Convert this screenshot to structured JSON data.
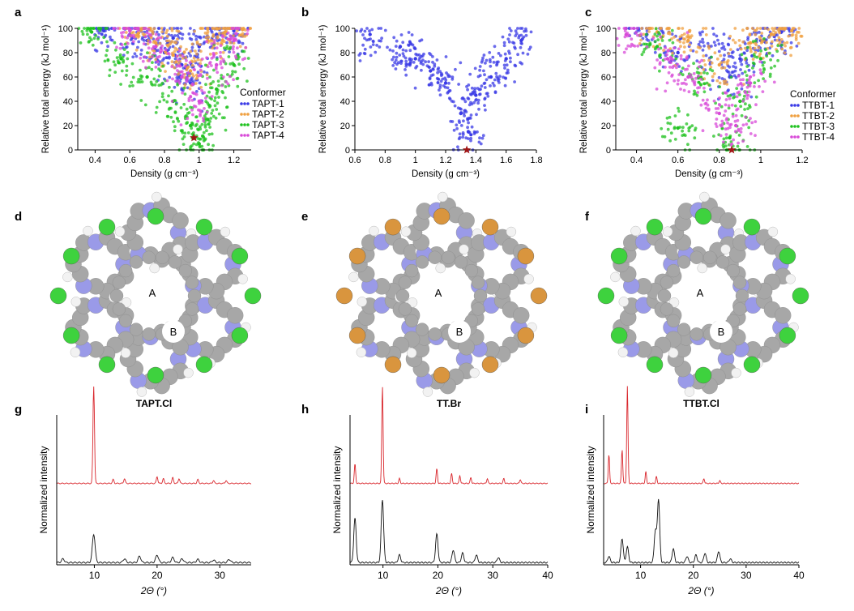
{
  "panels": {
    "a": {
      "letter": "a",
      "xlabel": "Density (g cm⁻³)",
      "ylabel": "Relative total energy (kJ mol⁻¹)",
      "legend_title": "Conformer",
      "legend": [
        "TAPT-1",
        "TAPT-2",
        "TAPT-3",
        "TAPT-4"
      ]
    },
    "b": {
      "letter": "b",
      "xlabel": "Density (g cm⁻³)",
      "ylabel": "Relative total energy (kJ mol⁻¹)"
    },
    "c": {
      "letter": "c",
      "xlabel": "Density (g cm⁻³)",
      "ylabel": "Relative total energy (kJ mol⁻¹)",
      "legend_title": "Conformer",
      "legend": [
        "TTBT-1",
        "TTBT-2",
        "TTBT-3",
        "TTBT-4"
      ]
    },
    "d": {
      "letter": "d",
      "pore_a": "A",
      "pore_b": "B"
    },
    "e": {
      "letter": "e",
      "pore_a": "A",
      "pore_b": "B"
    },
    "f": {
      "letter": "f",
      "pore_a": "A",
      "pore_b": "B"
    },
    "g": {
      "letter": "g",
      "title": "TAPT.Cl",
      "xlabel": "2Θ (°)",
      "ylabel": "Normalized intensity"
    },
    "h": {
      "letter": "h",
      "title": "TT.Br",
      "xlabel": "2Θ (°)",
      "ylabel": "Normalized intensity"
    },
    "i": {
      "letter": "i",
      "title": "TTBT.Cl",
      "xlabel": "2Θ (°)",
      "ylabel": "Normalized intensity"
    }
  },
  "colors": {
    "series1": "#3a3ae6",
    "series2": "#f0a040",
    "series3": "#1fc21f",
    "series4": "#d84ad8",
    "simulated": "#d9262c",
    "experimental": "#111111",
    "star": "#a01515",
    "carbon": "#a7a7a7",
    "nitrogen": "#9a9ae8",
    "hydrogen": "#f2f2f2",
    "chlorine": "#3ed23e",
    "bromine": "#d9953e"
  },
  "chart_data": [
    {
      "panel": "a",
      "type": "scatter",
      "xlim": [
        0.3,
        1.3
      ],
      "ylim": [
        0,
        100
      ],
      "xticks": [
        0.4,
        0.6,
        0.8,
        1.0,
        1.2
      ],
      "yticks": [
        0,
        20,
        40,
        60,
        80,
        100
      ],
      "series": [
        {
          "name": "TAPT-1",
          "points": [
            [
              0.45,
              98
            ],
            [
              0.6,
              95
            ],
            [
              0.7,
              90
            ],
            [
              0.8,
              80
            ],
            [
              0.9,
              70
            ],
            [
              0.95,
              55
            ],
            [
              1.0,
              85
            ],
            [
              1.1,
              95
            ],
            [
              1.2,
              98
            ],
            [
              0.85,
              92
            ]
          ]
        },
        {
          "name": "TAPT-2",
          "points": [
            [
              0.65,
              96
            ],
            [
              0.75,
              88
            ],
            [
              0.85,
              78
            ],
            [
              0.95,
              65
            ],
            [
              1.05,
              90
            ],
            [
              1.15,
              97
            ],
            [
              1.25,
              99
            ]
          ]
        },
        {
          "name": "TAPT-3",
          "points": [
            [
              0.38,
              97
            ],
            [
              0.55,
              75
            ],
            [
              0.7,
              60
            ],
            [
              0.85,
              40
            ],
            [
              0.95,
              20
            ],
            [
              1.0,
              5
            ],
            [
              1.05,
              25
            ],
            [
              1.1,
              50
            ],
            [
              1.2,
              70
            ]
          ]
        },
        {
          "name": "TAPT-4",
          "points": [
            [
              0.6,
              98
            ],
            [
              0.75,
              85
            ],
            [
              0.9,
              60
            ],
            [
              1.0,
              40
            ],
            [
              1.1,
              70
            ],
            [
              1.2,
              90
            ]
          ]
        }
      ],
      "marker": {
        "label": "star",
        "x": 0.97,
        "y": 10
      }
    },
    {
      "panel": "b",
      "type": "scatter",
      "xlim": [
        0.6,
        1.8
      ],
      "ylim": [
        0,
        100
      ],
      "xticks": [
        0.6,
        0.8,
        1.0,
        1.2,
        1.4,
        1.6,
        1.8
      ],
      "yticks": [
        0,
        20,
        40,
        60,
        80,
        100
      ],
      "series": [
        {
          "points": [
            [
              0.7,
              95
            ],
            [
              0.9,
              85
            ],
            [
              1.0,
              75
            ],
            [
              1.1,
              65
            ],
            [
              1.2,
              55
            ],
            [
              1.3,
              30
            ],
            [
              1.35,
              15
            ],
            [
              1.4,
              45
            ],
            [
              1.5,
              60
            ],
            [
              1.6,
              75
            ],
            [
              1.7,
              90
            ]
          ]
        }
      ],
      "marker": {
        "label": "star",
        "x": 1.34,
        "y": 0
      }
    },
    {
      "panel": "c",
      "type": "scatter",
      "xlim": [
        0.3,
        1.2
      ],
      "ylim": [
        0,
        100
      ],
      "xticks": [
        0.4,
        0.6,
        0.8,
        1.0,
        1.2
      ],
      "yticks": [
        0,
        20,
        40,
        60,
        80,
        100
      ],
      "series": [
        {
          "name": "TTBT-1",
          "points": [
            [
              0.45,
              95
            ],
            [
              0.6,
              80
            ],
            [
              0.75,
              85
            ],
            [
              0.85,
              60
            ],
            [
              0.9,
              75
            ],
            [
              1.0,
              90
            ],
            [
              1.1,
              97
            ]
          ]
        },
        {
          "name": "TTBT-2",
          "points": [
            [
              0.5,
              97
            ],
            [
              0.65,
              90
            ],
            [
              0.8,
              70
            ],
            [
              0.95,
              88
            ],
            [
              1.05,
              95
            ],
            [
              1.15,
              98
            ]
          ]
        },
        {
          "name": "TTBT-3",
          "points": [
            [
              0.5,
              85
            ],
            [
              0.6,
              18
            ],
            [
              0.7,
              60
            ],
            [
              0.85,
              10
            ],
            [
              0.9,
              40
            ],
            [
              1.0,
              75
            ]
          ]
        },
        {
          "name": "TTBT-4",
          "points": [
            [
              0.35,
              95
            ],
            [
              0.55,
              75
            ],
            [
              0.65,
              60
            ],
            [
              0.8,
              30
            ],
            [
              0.88,
              20
            ],
            [
              0.95,
              55
            ]
          ]
        }
      ],
      "marker": {
        "label": "star",
        "x": 0.86,
        "y": 0
      }
    },
    {
      "panel": "g",
      "type": "line",
      "xlim": [
        4,
        35
      ],
      "xticks": [
        10,
        20,
        30
      ],
      "series": [
        {
          "name": "simulated",
          "peaks": [
            [
              9.9,
              1.0
            ],
            [
              13.0,
              0.04
            ],
            [
              14.8,
              0.05
            ],
            [
              20.0,
              0.07
            ],
            [
              21.0,
              0.05
            ],
            [
              22.5,
              0.06
            ],
            [
              23.5,
              0.05
            ],
            [
              26.5,
              0.04
            ],
            [
              29,
              0.03
            ],
            [
              31,
              0.03
            ]
          ]
        },
        {
          "name": "experimental",
          "peaks": [
            [
              5.0,
              0.06
            ],
            [
              9.9,
              0.45
            ],
            [
              14.8,
              0.06
            ],
            [
              17.2,
              0.1
            ],
            [
              20.0,
              0.12
            ],
            [
              22.5,
              0.08
            ],
            [
              24,
              0.06
            ],
            [
              26.5,
              0.05
            ],
            [
              29,
              0.04
            ],
            [
              31.5,
              0.05
            ]
          ]
        }
      ]
    },
    {
      "panel": "h",
      "type": "line",
      "xlim": [
        4,
        40
      ],
      "xticks": [
        10,
        20,
        30,
        40
      ],
      "series": [
        {
          "name": "simulated",
          "peaks": [
            [
              4.9,
              0.2
            ],
            [
              9.9,
              1.0
            ],
            [
              13.0,
              0.05
            ],
            [
              19.8,
              0.15
            ],
            [
              22.5,
              0.1
            ],
            [
              24,
              0.08
            ],
            [
              26,
              0.06
            ],
            [
              29,
              0.05
            ],
            [
              32,
              0.05
            ],
            [
              35,
              0.04
            ]
          ]
        },
        {
          "name": "experimental",
          "peaks": [
            [
              4.9,
              0.7
            ],
            [
              9.9,
              1.0
            ],
            [
              13.0,
              0.12
            ],
            [
              19.8,
              0.45
            ],
            [
              22.8,
              0.2
            ],
            [
              24.5,
              0.15
            ],
            [
              27,
              0.12
            ],
            [
              31,
              0.08
            ]
          ]
        }
      ]
    },
    {
      "panel": "i",
      "type": "line",
      "xlim": [
        3,
        40
      ],
      "xticks": [
        10,
        20,
        30,
        40
      ],
      "series": [
        {
          "name": "simulated",
          "peaks": [
            [
              4.0,
              0.3
            ],
            [
              6.5,
              0.35
            ],
            [
              7.5,
              1.0
            ],
            [
              11.0,
              0.12
            ],
            [
              13.0,
              0.07
            ],
            [
              22,
              0.05
            ],
            [
              25,
              0.03
            ]
          ]
        },
        {
          "name": "experimental",
          "peaks": [
            [
              4.0,
              0.1
            ],
            [
              6.5,
              0.38
            ],
            [
              7.5,
              0.25
            ],
            [
              12.8,
              0.5
            ],
            [
              13.4,
              1.0
            ],
            [
              16.2,
              0.22
            ],
            [
              18.8,
              0.1
            ],
            [
              20.5,
              0.12
            ],
            [
              22.2,
              0.15
            ],
            [
              24.8,
              0.18
            ],
            [
              27,
              0.06
            ]
          ]
        }
      ]
    }
  ]
}
